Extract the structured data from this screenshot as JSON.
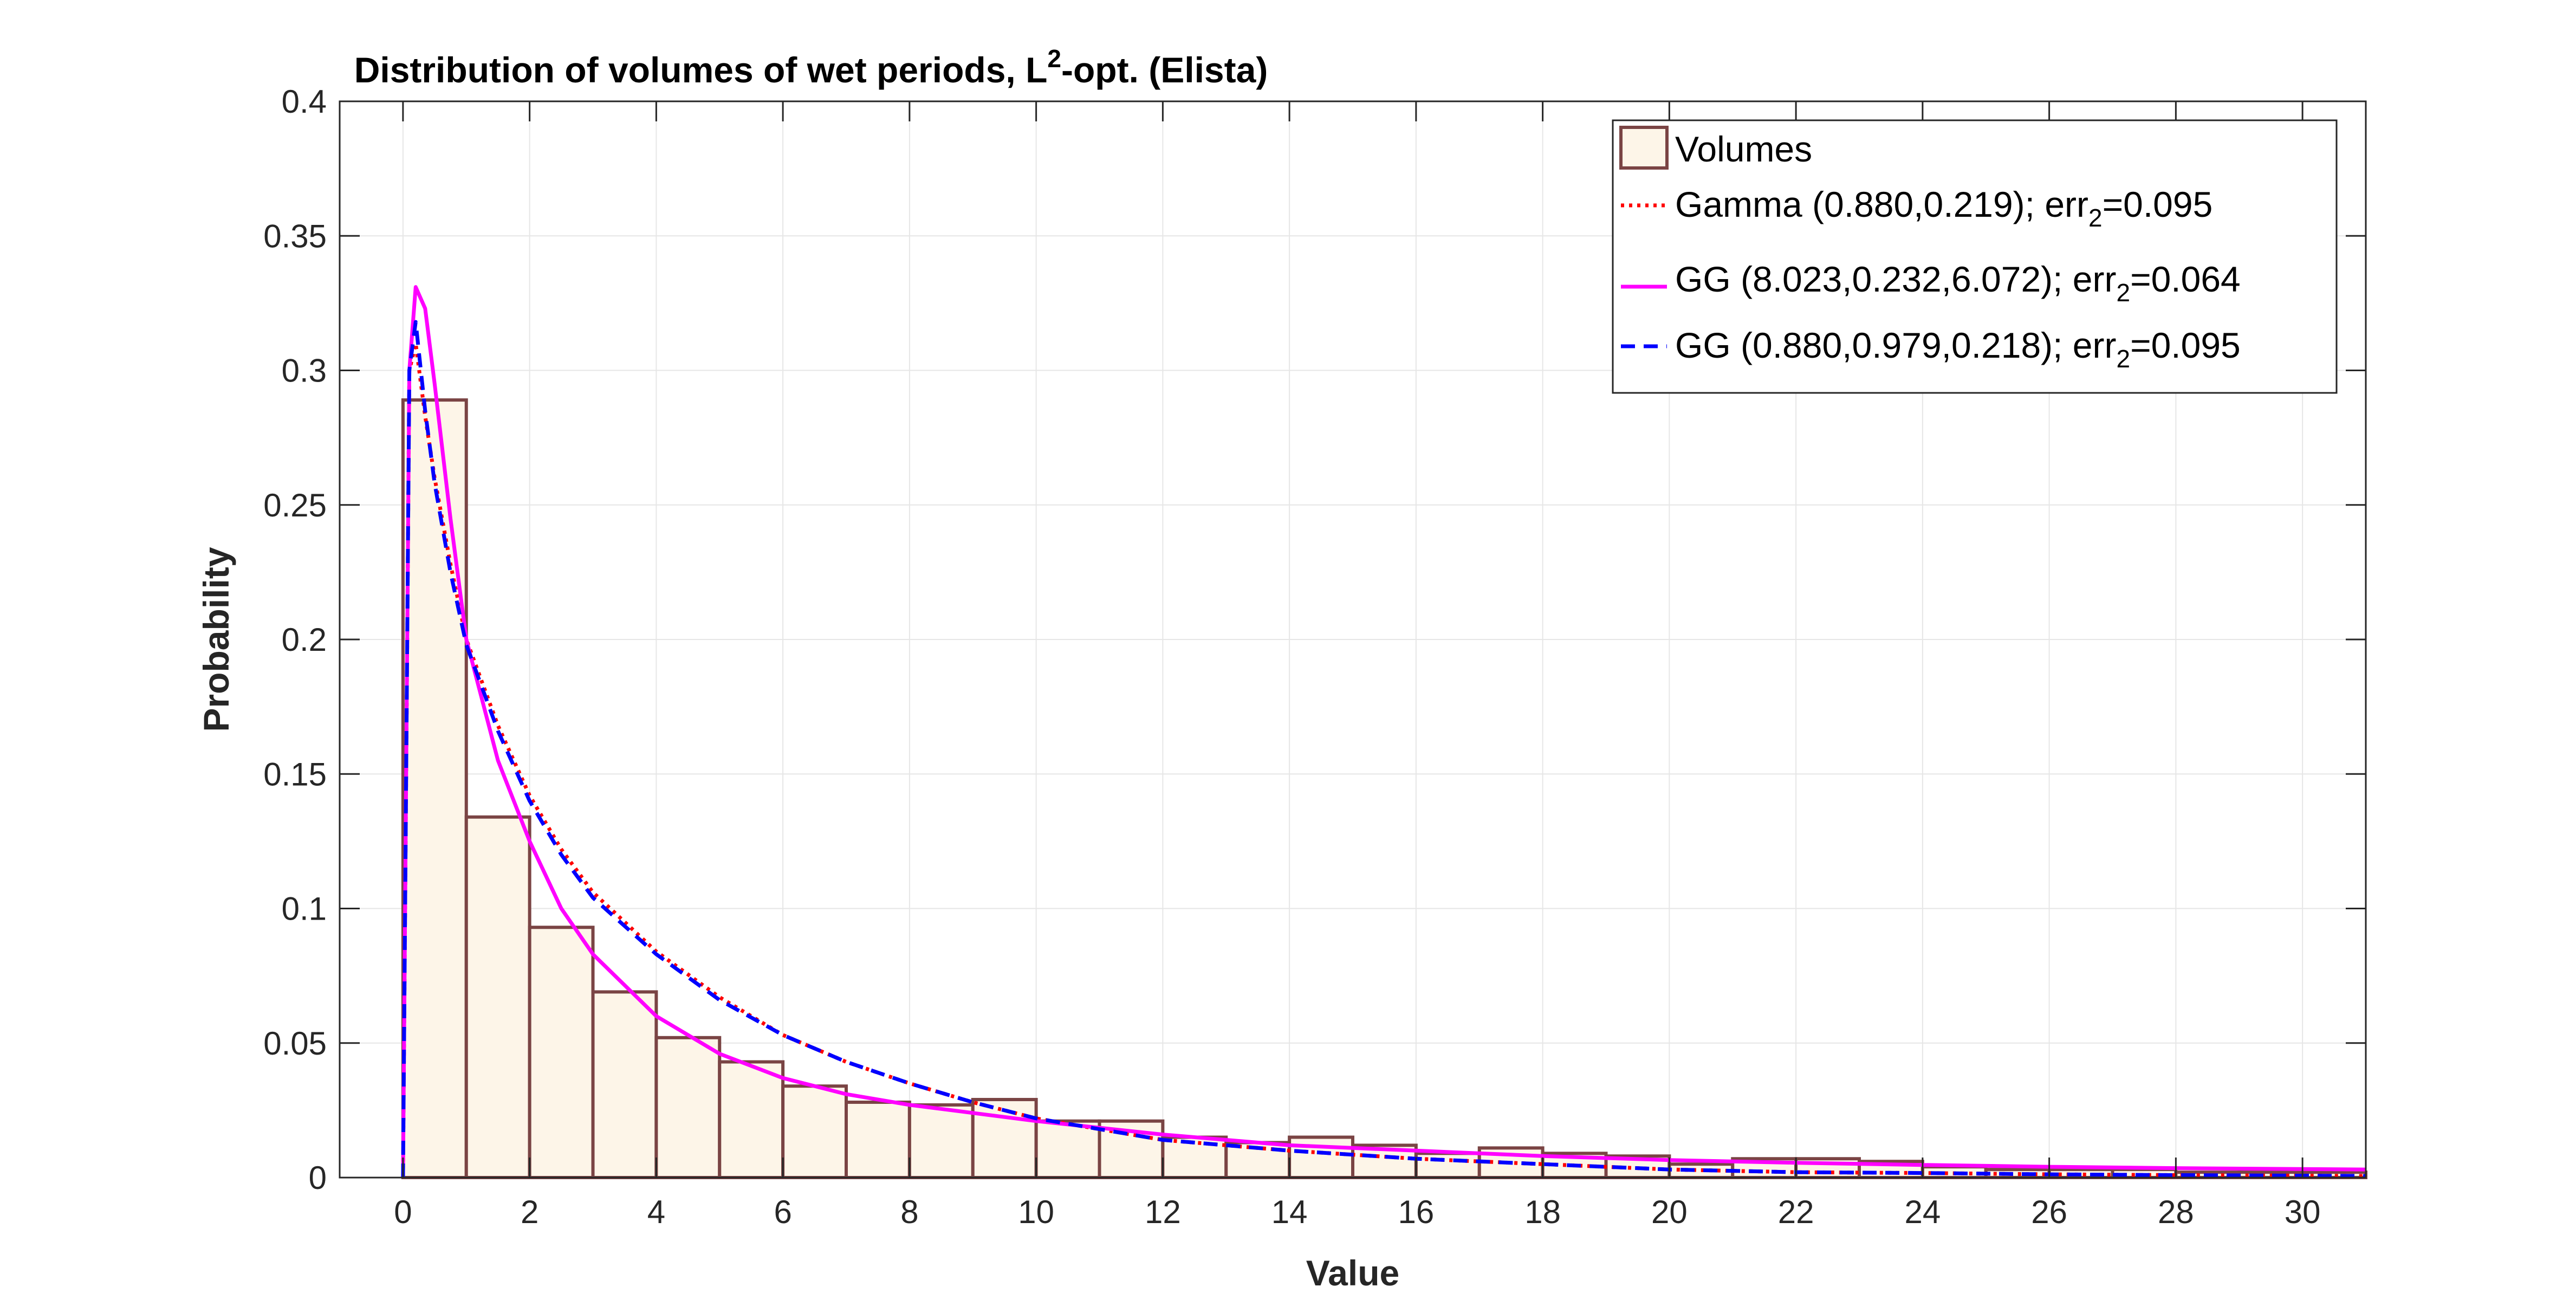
{
  "chart_data": {
    "type": "bar",
    "title_main": "Distribution of volumes of wet periods, L",
    "title_sup": "2",
    "title_rest": "-opt. (Elista)",
    "xlabel": "Value",
    "ylabel": "Probability",
    "xlim": [
      -1,
      31
    ],
    "ylim": [
      0,
      0.4
    ],
    "grid": true,
    "legend_position": "top-right",
    "x_ticks": [
      0,
      2,
      4,
      6,
      8,
      10,
      12,
      14,
      16,
      18,
      20,
      22,
      24,
      26,
      28,
      30
    ],
    "y_ticks": [
      0,
      0.05,
      0.1,
      0.15,
      0.2,
      0.25,
      0.3,
      0.35,
      0.4
    ],
    "y_tick_labels": [
      "0",
      "0.05",
      "0.1",
      "0.15",
      "0.2",
      "0.25",
      "0.3",
      "0.35",
      "0.4"
    ],
    "histogram": {
      "name": "Volumes",
      "face_color": "#fdf5e8",
      "edge_color": "#7a4444",
      "bin_edges": [
        0,
        1,
        2,
        3,
        4,
        5,
        6,
        7,
        8,
        9,
        10,
        11,
        12,
        13,
        14,
        15,
        16,
        17,
        18,
        19,
        20,
        21,
        22,
        23,
        24,
        25,
        26,
        27,
        28,
        29,
        30,
        31
      ],
      "values": [
        0.289,
        0.134,
        0.093,
        0.069,
        0.052,
        0.043,
        0.034,
        0.028,
        0.027,
        0.029,
        0.021,
        0.021,
        0.015,
        0.013,
        0.015,
        0.012,
        0.009,
        0.011,
        0.009,
        0.008,
        0.005,
        0.007,
        0.007,
        0.006,
        0.004,
        0.003,
        0.003,
        0.003,
        0.002,
        0.002,
        0.002
      ]
    },
    "series": [
      {
        "name": "Gamma (0.880,0.219); err",
        "sub": "2",
        "suffix": "=0.095",
        "color": "#ff0000",
        "style": "dotted",
        "x": [
          0,
          0.1,
          0.2,
          0.35,
          0.5,
          0.75,
          1,
          1.5,
          2,
          2.5,
          3,
          4,
          5,
          6,
          7,
          8,
          9,
          10,
          12,
          14,
          16,
          18,
          20,
          22,
          24,
          26,
          28,
          31
        ],
        "y": [
          0,
          0.3,
          0.31,
          0.283,
          0.26,
          0.228,
          0.2,
          0.168,
          0.142,
          0.122,
          0.106,
          0.084,
          0.067,
          0.053,
          0.043,
          0.035,
          0.028,
          0.022,
          0.014,
          0.01,
          0.007,
          0.005,
          0.003,
          0.002,
          0.0017,
          0.0012,
          0.0009,
          0.0006
        ]
      },
      {
        "name": "GG (8.023,0.232,6.072); err",
        "sub": "2",
        "suffix": "=0.064",
        "color": "#ff00ff",
        "style": "solid",
        "x": [
          0,
          0.1,
          0.2,
          0.35,
          0.5,
          0.75,
          1,
          1.5,
          2,
          2.5,
          3,
          4,
          5,
          6,
          7,
          8,
          9,
          10,
          12,
          14,
          16,
          18,
          20,
          22,
          24,
          26,
          28,
          31
        ],
        "y": [
          0,
          0.3,
          0.331,
          0.323,
          0.295,
          0.245,
          0.2,
          0.155,
          0.125,
          0.1,
          0.083,
          0.06,
          0.046,
          0.037,
          0.031,
          0.027,
          0.024,
          0.021,
          0.016,
          0.012,
          0.01,
          0.008,
          0.0065,
          0.0055,
          0.0047,
          0.004,
          0.0035,
          0.003
        ]
      },
      {
        "name": "GG (0.880,0.979,0.218); err",
        "sub": "2",
        "suffix": "=0.095",
        "color": "#0000ff",
        "style": "dashed",
        "x": [
          0,
          0.1,
          0.2,
          0.35,
          0.5,
          0.75,
          1,
          1.5,
          2,
          2.5,
          3,
          4,
          5,
          6,
          7,
          8,
          9,
          10,
          12,
          14,
          16,
          18,
          20,
          22,
          24,
          26,
          28,
          31
        ],
        "y": [
          0,
          0.3,
          0.318,
          0.285,
          0.258,
          0.225,
          0.198,
          0.166,
          0.14,
          0.12,
          0.104,
          0.083,
          0.066,
          0.053,
          0.043,
          0.035,
          0.028,
          0.022,
          0.014,
          0.01,
          0.007,
          0.005,
          0.003,
          0.002,
          0.0017,
          0.0012,
          0.0009,
          0.0006
        ]
      }
    ]
  }
}
